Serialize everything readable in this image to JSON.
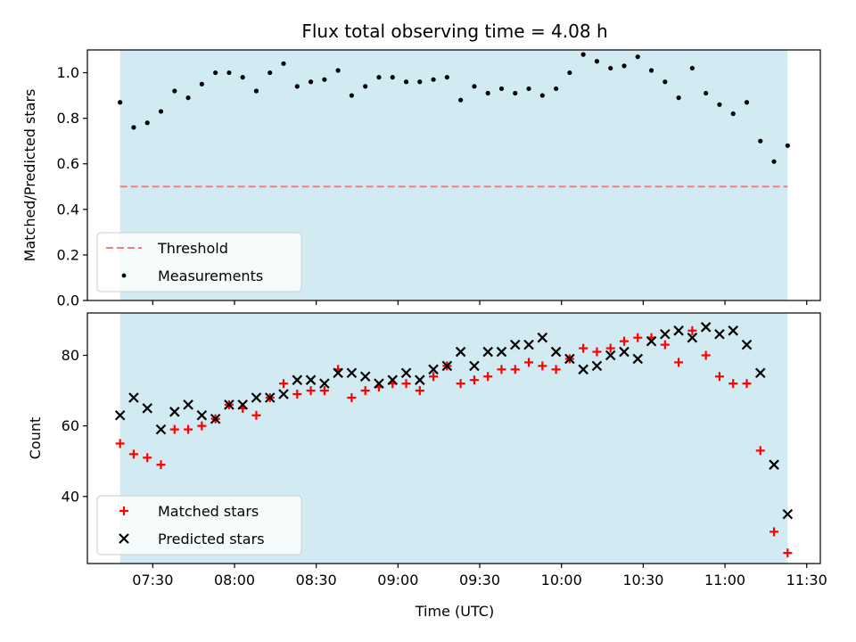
{
  "figure": {
    "title": "Flux total observing time = 4.08 h",
    "xlabel": "Time (UTC)",
    "colors": {
      "shade": "#add8e6",
      "threshold": "#f08080",
      "measurement": "#000000",
      "matched": "#ff0000",
      "predicted": "#000000"
    }
  },
  "chart_data": [
    {
      "type": "scatter",
      "panel": "top",
      "ylabel": "Matched/Predicted stars",
      "ylim": [
        0,
        1.1
      ],
      "yticks": [
        0.0,
        0.2,
        0.4,
        0.6,
        0.8,
        1.0
      ],
      "ytick_labels": [
        "0.0",
        "0.2",
        "0.4",
        "0.6",
        "0.8",
        "1.0"
      ],
      "xlim": [
        "07:06",
        "11:35"
      ],
      "xticks": [
        "07:30",
        "08:00",
        "08:30",
        "09:00",
        "09:30",
        "10:00",
        "10:30",
        "11:00",
        "11:30"
      ],
      "shaded_span": [
        "07:18",
        "11:23"
      ],
      "threshold": 0.5,
      "legend": {
        "entries": [
          "Threshold",
          "Measurements"
        ],
        "location": "lower-left"
      },
      "series": [
        {
          "name": "Measurements",
          "marker": "dot",
          "x": [
            "07:18",
            "07:23",
            "07:28",
            "07:33",
            "07:38",
            "07:43",
            "07:48",
            "07:53",
            "07:58",
            "08:03",
            "08:08",
            "08:13",
            "08:18",
            "08:23",
            "08:28",
            "08:33",
            "08:38",
            "08:43",
            "08:48",
            "08:53",
            "08:58",
            "09:03",
            "09:08",
            "09:13",
            "09:18",
            "09:23",
            "09:28",
            "09:33",
            "09:38",
            "09:43",
            "09:48",
            "09:53",
            "09:58",
            "10:03",
            "10:08",
            "10:13",
            "10:18",
            "10:23",
            "10:28",
            "10:33",
            "10:38",
            "10:43",
            "10:48",
            "10:53",
            "10:58",
            "11:03",
            "11:08",
            "11:13",
            "11:18",
            "11:23"
          ],
          "y": [
            0.87,
            0.76,
            0.78,
            0.83,
            0.92,
            0.89,
            0.95,
            1.0,
            1.0,
            0.98,
            0.92,
            1.0,
            1.04,
            0.94,
            0.96,
            0.97,
            1.01,
            0.9,
            0.94,
            0.98,
            0.98,
            0.96,
            0.96,
            0.97,
            0.98,
            0.88,
            0.94,
            0.91,
            0.93,
            0.91,
            0.93,
            0.9,
            0.93,
            1.0,
            1.08,
            1.05,
            1.02,
            1.03,
            1.07,
            1.01,
            0.96,
            0.89,
            1.02,
            0.91,
            0.86,
            0.82,
            0.87,
            0.7,
            0.61,
            0.68
          ]
        }
      ]
    },
    {
      "type": "scatter",
      "panel": "bottom",
      "ylabel": "Count",
      "ylim": [
        21,
        92
      ],
      "yticks": [
        40,
        60,
        80
      ],
      "ytick_labels": [
        "40",
        "60",
        "80"
      ],
      "xlim": [
        "07:06",
        "11:35"
      ],
      "xticks": [
        "07:30",
        "08:00",
        "08:30",
        "09:00",
        "09:30",
        "10:00",
        "10:30",
        "11:00",
        "11:30"
      ],
      "xtick_labels": [
        "07:30",
        "08:00",
        "08:30",
        "09:00",
        "09:30",
        "10:00",
        "10:30",
        "11:00",
        "11:30"
      ],
      "xlabel": "Time (UTC)",
      "shaded_span": [
        "07:18",
        "11:23"
      ],
      "legend": {
        "entries": [
          "Matched stars",
          "Predicted stars"
        ],
        "location": "lower-left"
      },
      "series": [
        {
          "name": "Matched stars",
          "marker": "plus",
          "x": [
            "07:18",
            "07:23",
            "07:28",
            "07:33",
            "07:38",
            "07:43",
            "07:48",
            "07:53",
            "07:58",
            "08:03",
            "08:08",
            "08:13",
            "08:18",
            "08:23",
            "08:28",
            "08:33",
            "08:38",
            "08:43",
            "08:48",
            "08:53",
            "08:58",
            "09:03",
            "09:08",
            "09:13",
            "09:18",
            "09:23",
            "09:28",
            "09:33",
            "09:38",
            "09:43",
            "09:48",
            "09:53",
            "09:58",
            "10:03",
            "10:08",
            "10:13",
            "10:18",
            "10:23",
            "10:28",
            "10:33",
            "10:38",
            "10:43",
            "10:48",
            "10:53",
            "10:58",
            "11:03",
            "11:08",
            "11:13",
            "11:18",
            "11:23"
          ],
          "y": [
            55,
            52,
            51,
            49,
            59,
            59,
            60,
            62,
            66,
            65,
            63,
            68,
            72,
            69,
            70,
            70,
            76,
            68,
            70,
            71,
            72,
            72,
            70,
            74,
            77,
            72,
            73,
            74,
            76,
            76,
            78,
            77,
            76,
            79,
            82,
            81,
            82,
            84,
            85,
            85,
            83,
            78,
            87,
            80,
            74,
            72,
            72,
            53,
            30,
            24
          ]
        },
        {
          "name": "Predicted stars",
          "marker": "x",
          "x": [
            "07:18",
            "07:23",
            "07:28",
            "07:33",
            "07:38",
            "07:43",
            "07:48",
            "07:53",
            "07:58",
            "08:03",
            "08:08",
            "08:13",
            "08:18",
            "08:23",
            "08:28",
            "08:33",
            "08:38",
            "08:43",
            "08:48",
            "08:53",
            "08:58",
            "09:03",
            "09:08",
            "09:13",
            "09:18",
            "09:23",
            "09:28",
            "09:33",
            "09:38",
            "09:43",
            "09:48",
            "09:53",
            "09:58",
            "10:03",
            "10:08",
            "10:13",
            "10:18",
            "10:23",
            "10:28",
            "10:33",
            "10:38",
            "10:43",
            "10:48",
            "10:53",
            "10:58",
            "11:03",
            "11:08",
            "11:13",
            "11:18",
            "11:23"
          ],
          "y": [
            63,
            68,
            65,
            59,
            64,
            66,
            63,
            62,
            66,
            66,
            68,
            68,
            69,
            73,
            73,
            72,
            75,
            75,
            74,
            72,
            73,
            75,
            73,
            76,
            77,
            81,
            77,
            81,
            81,
            83,
            83,
            85,
            81,
            79,
            76,
            77,
            80,
            81,
            79,
            84,
            86,
            87,
            85,
            88,
            86,
            87,
            83,
            75,
            49,
            35
          ]
        }
      ]
    }
  ]
}
